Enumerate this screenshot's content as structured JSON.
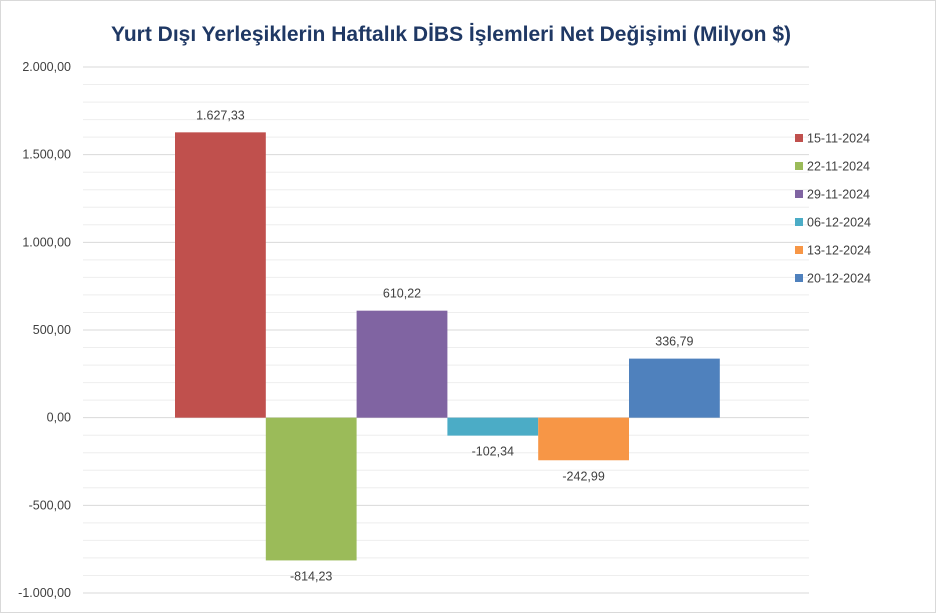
{
  "chart_data": {
    "type": "bar",
    "title": "Yurt Dışı Yerleşiklerin Haftalık DİBS İşlemleri Net Değişimi (Milyon $)",
    "xlabel": "",
    "ylabel": "",
    "ylim": [
      -1000,
      2000
    ],
    "yticks": [
      2000,
      1500,
      1000,
      500,
      0,
      -500,
      -1000
    ],
    "ytick_labels": [
      "2.000,00",
      "1.500,00",
      "1.000,00",
      "500,00",
      "0,00",
      "-500,00",
      "-1.000,00"
    ],
    "grid": true,
    "legend_position": "right",
    "series": [
      {
        "name": "15-11-2024",
        "value": 1627.33,
        "label": "1.627,33",
        "color": "#c0504d"
      },
      {
        "name": "22-11-2024",
        "value": -814.23,
        "label": "-814,23",
        "color": "#9bbb59"
      },
      {
        "name": "29-11-2024",
        "value": 610.22,
        "label": "610,22",
        "color": "#8064a2"
      },
      {
        "name": "06-12-2024",
        "value": -102.34,
        "label": "-102,34",
        "color": "#4bacc6"
      },
      {
        "name": "13-12-2024",
        "value": -242.99,
        "label": "-242,99",
        "color": "#f79646"
      },
      {
        "name": "20-12-2024",
        "value": 336.79,
        "label": "336,79",
        "color": "#4f81bd"
      }
    ]
  },
  "colors": {
    "title": "#1f3864",
    "gridline": "#d9d9d9",
    "text": "#404040"
  }
}
